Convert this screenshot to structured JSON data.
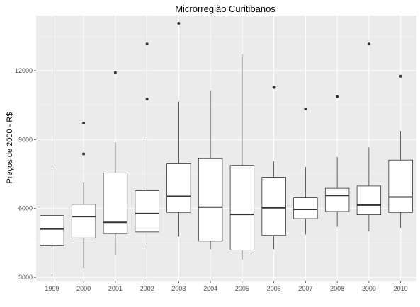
{
  "chart_data": {
    "type": "boxplot",
    "title": "Microrregião  Curitibanos",
    "xlabel": "",
    "ylabel": "Preços de 2000 - R$",
    "ylim": [
      2850,
      14400
    ],
    "yticks": [
      3000,
      6000,
      9000,
      12000
    ],
    "ytick_labels": [
      "3000",
      "6000",
      "9000",
      "12000"
    ],
    "grid": true,
    "categories": [
      "1999",
      "2000",
      "2001",
      "2002",
      "2003",
      "2004",
      "2005",
      "2006",
      "2007",
      "2008",
      "2009",
      "2010"
    ],
    "boxes": [
      {
        "min": 3200,
        "q1": 4380,
        "median": 5110,
        "q3": 5700,
        "max": 7720,
        "outliers": []
      },
      {
        "min": 3400,
        "q1": 4720,
        "median": 5650,
        "q3": 6180,
        "max": 7150,
        "outliers": [
          8380,
          9720
        ]
      },
      {
        "min": 3990,
        "q1": 4910,
        "median": 5400,
        "q3": 7550,
        "max": 8890,
        "outliers": [
          11920
        ]
      },
      {
        "min": 4440,
        "q1": 4980,
        "median": 5780,
        "q3": 6780,
        "max": 9060,
        "outliers": [
          10760,
          13160
        ]
      },
      {
        "min": 4770,
        "q1": 5830,
        "median": 6530,
        "q3": 7950,
        "max": 10660,
        "outliers": [
          14060
        ]
      },
      {
        "min": 4220,
        "q1": 4580,
        "median": 6060,
        "q3": 8170,
        "max": 11150,
        "outliers": []
      },
      {
        "min": 3780,
        "q1": 4190,
        "median": 5740,
        "q3": 7880,
        "max": 12720,
        "outliers": []
      },
      {
        "min": 4220,
        "q1": 4830,
        "median": 6030,
        "q3": 7360,
        "max": 8050,
        "outliers": [
          11270
        ]
      },
      {
        "min": 4870,
        "q1": 5560,
        "median": 5960,
        "q3": 6470,
        "max": 7810,
        "outliers": [
          10340
        ]
      },
      {
        "min": 5200,
        "q1": 5870,
        "median": 6570,
        "q3": 6880,
        "max": 8240,
        "outliers": [
          10870
        ]
      },
      {
        "min": 5000,
        "q1": 5730,
        "median": 6150,
        "q3": 6980,
        "max": 8660,
        "outliers": [
          13160
        ]
      },
      {
        "min": 5150,
        "q1": 5830,
        "median": 6500,
        "q3": 8110,
        "max": 9380,
        "outliers": [
          11760
        ]
      }
    ],
    "colors": {
      "panel": "#ebebeb",
      "grid_major": "#ffffff",
      "grid_minor": "#f5f5f5",
      "box_fill": "#ffffff",
      "box_stroke": "#333333",
      "outlier": "#333333"
    }
  }
}
